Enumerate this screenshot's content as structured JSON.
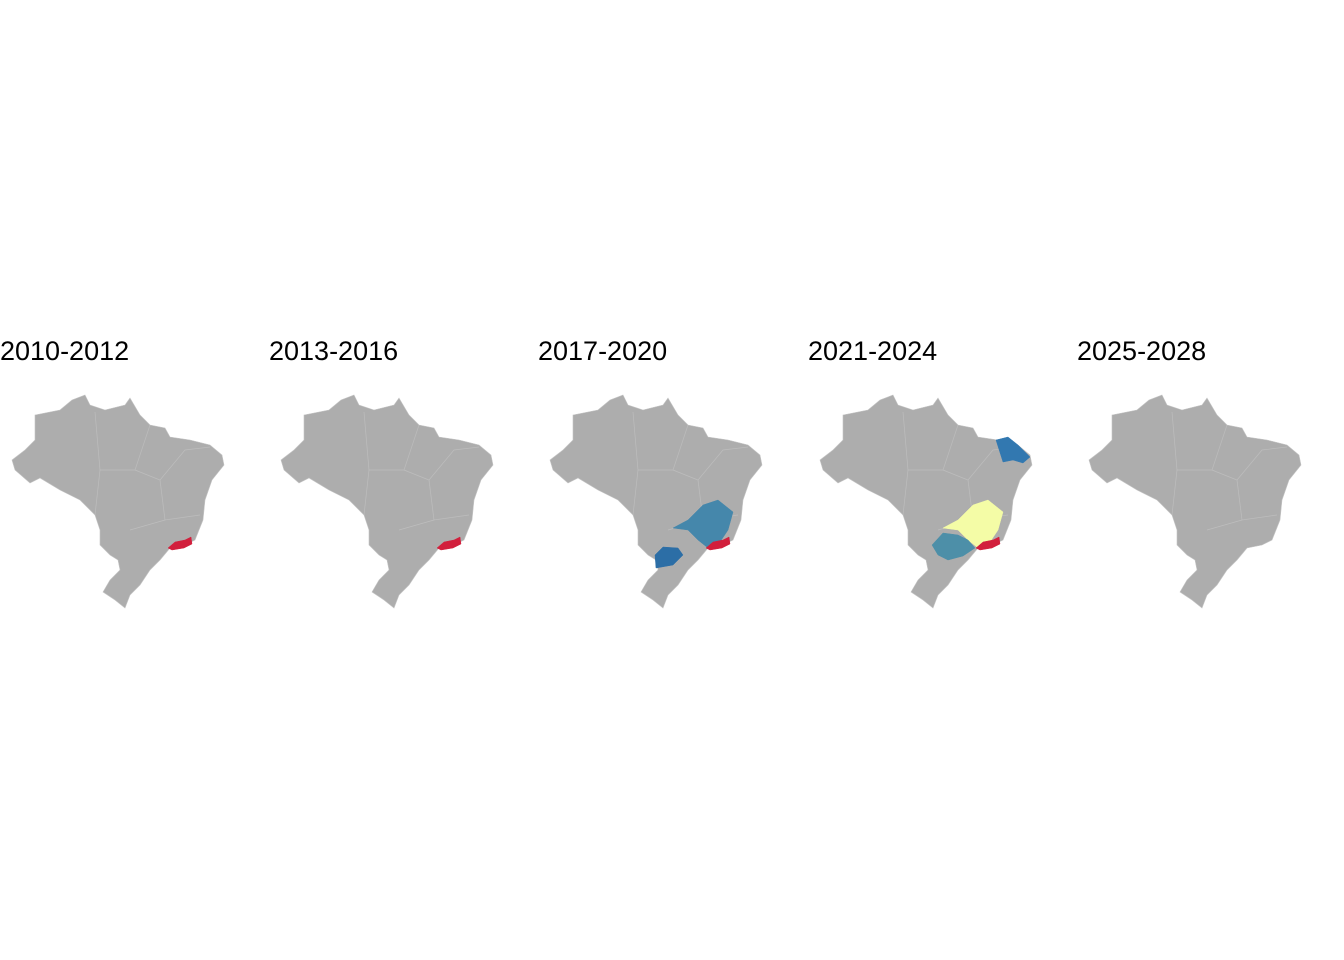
{
  "panels": [
    {
      "title": "2010-2012",
      "highlight_colors": [
        "#d21f3c"
      ]
    },
    {
      "title": "2013-2016",
      "highlight_colors": [
        "#d21f3c"
      ]
    },
    {
      "title": "2017-2020",
      "highlight_colors": [
        "#4587ab",
        "#2c6ea6",
        "#d21f3c"
      ]
    },
    {
      "title": "2021-2024",
      "highlight_colors": [
        "#3278b0",
        "#f4fca6",
        "#4d8fa8",
        "#d21f3c"
      ]
    },
    {
      "title": "2025-2028",
      "highlight_colors": []
    }
  ],
  "base_color": "#adadad"
}
